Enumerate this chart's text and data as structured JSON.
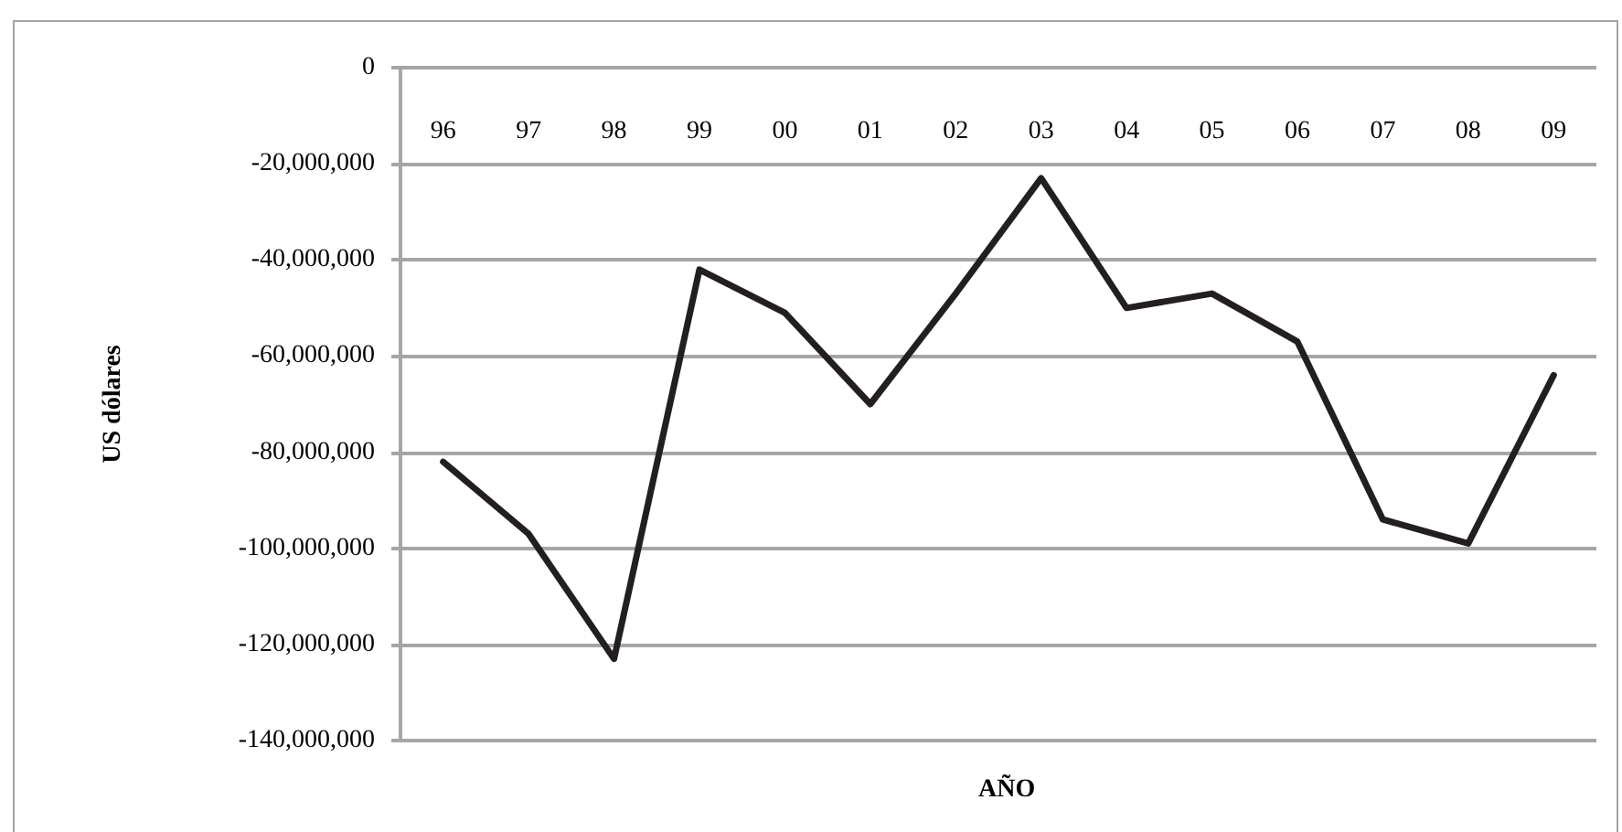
{
  "chart_data": {
    "type": "line",
    "xlabel": "AÑO",
    "ylabel": "US dólares",
    "categories": [
      "96",
      "97",
      "98",
      "99",
      "00",
      "01",
      "02",
      "03",
      "04",
      "05",
      "06",
      "07",
      "08",
      "09"
    ],
    "series": [
      {
        "color": "#231f20",
        "values": [
          -82000000,
          -97000000,
          -123000000,
          -42000000,
          -51000000,
          -70000000,
          -47000000,
          -23000000,
          -50000000,
          -47000000,
          -57000000,
          -94000000,
          -99000000,
          -64000000
        ]
      }
    ],
    "ylim": [
      -140000000,
      0
    ],
    "yticks": [
      {
        "value": -140000000,
        "label": "-140,000,000"
      },
      {
        "value": -120000000,
        "label": "-120,000,000"
      },
      {
        "value": -100000000,
        "label": "-100,000,000"
      },
      {
        "value": -80000000,
        "label": "-80,000,000"
      },
      {
        "value": -60000000,
        "label": "-60,000,000"
      },
      {
        "value": -40000000,
        "label": "-40,000,000"
      },
      {
        "value": -20000000,
        "label": "-20,000,000"
      },
      {
        "value": 0,
        "label": "0"
      }
    ],
    "grid": "y",
    "marker": "none",
    "line_style": "solid"
  }
}
